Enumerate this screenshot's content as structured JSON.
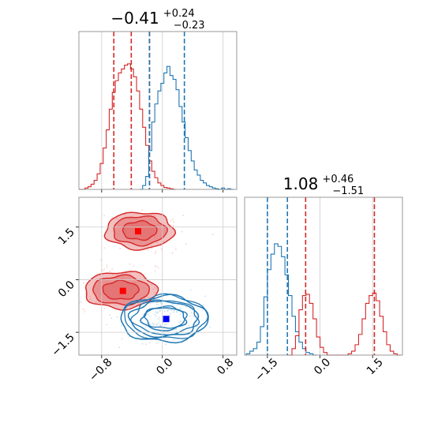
{
  "chart_data": [
    {
      "panel": "marginal-x",
      "type": "histogram",
      "title": {
        "value": "−0.41",
        "upper": "+0.24",
        "lower": "−0.23"
      },
      "xlim": [
        -1.1,
        0.98
      ],
      "xticks": [
        -0.8,
        0.0,
        0.8
      ],
      "grid": true,
      "series": [
        {
          "color": "#d62728",
          "median": -0.41,
          "quantiles": [
            -0.64,
            -0.17
          ],
          "hist": [
            [
              -1.1,
              0.0
            ],
            [
              -1.06,
              0.0
            ],
            [
              -1.02,
              0.01
            ],
            [
              -0.98,
              0.02
            ],
            [
              -0.94,
              0.04
            ],
            [
              -0.9,
              0.07
            ],
            [
              -0.86,
              0.12
            ],
            [
              -0.82,
              0.2
            ],
            [
              -0.78,
              0.32
            ],
            [
              -0.74,
              0.46
            ],
            [
              -0.7,
              0.62
            ],
            [
              -0.66,
              0.75
            ],
            [
              -0.62,
              0.84
            ],
            [
              -0.58,
              0.9
            ],
            [
              -0.54,
              0.93
            ],
            [
              -0.5,
              0.96
            ],
            [
              -0.46,
              0.97
            ],
            [
              -0.42,
              0.93
            ],
            [
              -0.38,
              0.87
            ],
            [
              -0.34,
              0.76
            ],
            [
              -0.3,
              0.62
            ],
            [
              -0.26,
              0.48
            ],
            [
              -0.22,
              0.34
            ],
            [
              -0.18,
              0.22
            ],
            [
              -0.14,
              0.14
            ],
            [
              -0.1,
              0.09
            ],
            [
              -0.06,
              0.05
            ],
            [
              -0.02,
              0.03
            ],
            [
              0.02,
              0.015
            ],
            [
              0.06,
              0.01
            ],
            [
              0.1,
              0.005
            ],
            [
              0.14,
              0.0
            ]
          ]
        },
        {
          "color": "#1f77b4",
          "median": -0.17,
          "quantiles": [
            0.29
          ],
          "hist": [
            [
              -0.3,
              0.0
            ],
            [
              -0.26,
              0.03
            ],
            [
              -0.22,
              0.1
            ],
            [
              -0.18,
              0.3
            ],
            [
              -0.14,
              0.52
            ],
            [
              -0.1,
              0.66
            ],
            [
              -0.06,
              0.76
            ],
            [
              -0.02,
              0.82
            ],
            [
              0.02,
              0.9
            ],
            [
              0.06,
              0.95
            ],
            [
              0.1,
              0.88
            ],
            [
              0.14,
              0.85
            ],
            [
              0.18,
              0.77
            ],
            [
              0.22,
              0.64
            ],
            [
              0.26,
              0.52
            ],
            [
              0.3,
              0.4
            ],
            [
              0.34,
              0.3
            ],
            [
              0.38,
              0.22
            ],
            [
              0.42,
              0.15
            ],
            [
              0.46,
              0.11
            ],
            [
              0.5,
              0.07
            ],
            [
              0.54,
              0.05
            ],
            [
              0.58,
              0.03
            ],
            [
              0.62,
              0.02
            ],
            [
              0.66,
              0.01
            ],
            [
              0.7,
              0.005
            ],
            [
              0.74,
              0.0
            ],
            [
              0.78,
              0.01
            ],
            [
              0.82,
              0.0
            ],
            [
              0.86,
              0.005
            ],
            [
              0.9,
              0.0
            ]
          ]
        }
      ]
    },
    {
      "panel": "marginal-y",
      "type": "histogram",
      "title": {
        "value": "1.08",
        "upper": "+0.46",
        "lower": "−1.51"
      },
      "xlim": [
        -2.15,
        2.35
      ],
      "xticks": [
        -1.5,
        0.0,
        1.5
      ],
      "grid": true,
      "series": [
        {
          "color": "#1f77b4",
          "median": -0.93,
          "quantiles": [
            -1.5
          ],
          "hist": [
            [
              -2.1,
              0.01
            ],
            [
              -2.0,
              0.03
            ],
            [
              -1.9,
              0.05
            ],
            [
              -1.8,
              0.1
            ],
            [
              -1.7,
              0.22
            ],
            [
              -1.6,
              0.45
            ],
            [
              -1.5,
              0.66
            ],
            [
              -1.4,
              0.78
            ],
            [
              -1.3,
              0.86
            ],
            [
              -1.2,
              0.84
            ],
            [
              -1.1,
              0.76
            ],
            [
              -1.0,
              0.62
            ],
            [
              -0.9,
              0.46
            ],
            [
              -0.8,
              0.3
            ],
            [
              -0.7,
              0.18
            ],
            [
              -0.6,
              0.1
            ],
            [
              -0.5,
              0.05
            ],
            [
              -0.4,
              0.02
            ],
            [
              -0.3,
              0.01
            ],
            [
              -0.2,
              0.0
            ]
          ]
        },
        {
          "color": "#d62728",
          "median": 1.55,
          "quantiles": [
            -0.41
          ],
          "hist": [
            [
              -0.9,
              0.0
            ],
            [
              -0.8,
              0.05
            ],
            [
              -0.7,
              0.15
            ],
            [
              -0.6,
              0.35
            ],
            [
              -0.5,
              0.46
            ],
            [
              -0.4,
              0.47
            ],
            [
              -0.3,
              0.4
            ],
            [
              -0.2,
              0.28
            ],
            [
              -0.1,
              0.14
            ],
            [
              0.0,
              0.06
            ],
            [
              0.1,
              0.02
            ],
            [
              0.2,
              0.0
            ],
            [
              0.3,
              0.0
            ],
            [
              0.4,
              0.0
            ],
            [
              0.5,
              0.0
            ],
            [
              0.6,
              0.0
            ],
            [
              0.7,
              0.0
            ],
            [
              0.8,
              0.01
            ],
            [
              0.9,
              0.03
            ],
            [
              1.0,
              0.08
            ],
            [
              1.1,
              0.16
            ],
            [
              1.2,
              0.28
            ],
            [
              1.3,
              0.4
            ],
            [
              1.4,
              0.46
            ],
            [
              1.5,
              0.48
            ],
            [
              1.6,
              0.42
            ],
            [
              1.7,
              0.3
            ],
            [
              1.8,
              0.18
            ],
            [
              1.9,
              0.08
            ],
            [
              2.0,
              0.03
            ],
            [
              2.1,
              0.01
            ],
            [
              2.2,
              0.0
            ]
          ]
        }
      ]
    },
    {
      "panel": "joint",
      "type": "contour",
      "xlim": [
        -1.1,
        0.98
      ],
      "ylim": [
        -2.15,
        2.35
      ],
      "xticks": [
        -0.8,
        0.0,
        0.8
      ],
      "yticks": [
        -1.5,
        0.0,
        1.5
      ],
      "grid": true,
      "clusters": [
        {
          "color": "#d62728",
          "fill": "#e57373",
          "center": [
            -0.3,
            1.4
          ],
          "width": 0.9,
          "height": 1.05,
          "marker": [
            -0.32,
            1.38
          ]
        },
        {
          "color": "#d62728",
          "fill": "#e57373",
          "center": [
            -0.55,
            -0.3
          ],
          "width": 0.95,
          "height": 1.05,
          "marker": [
            -0.52,
            -0.32
          ]
        },
        {
          "color": "#1f77b4",
          "fill": "none",
          "center": [
            0.02,
            -1.12
          ],
          "width": 1.15,
          "height": 1.3,
          "marker": [
            0.05,
            -1.12
          ]
        }
      ]
    }
  ]
}
